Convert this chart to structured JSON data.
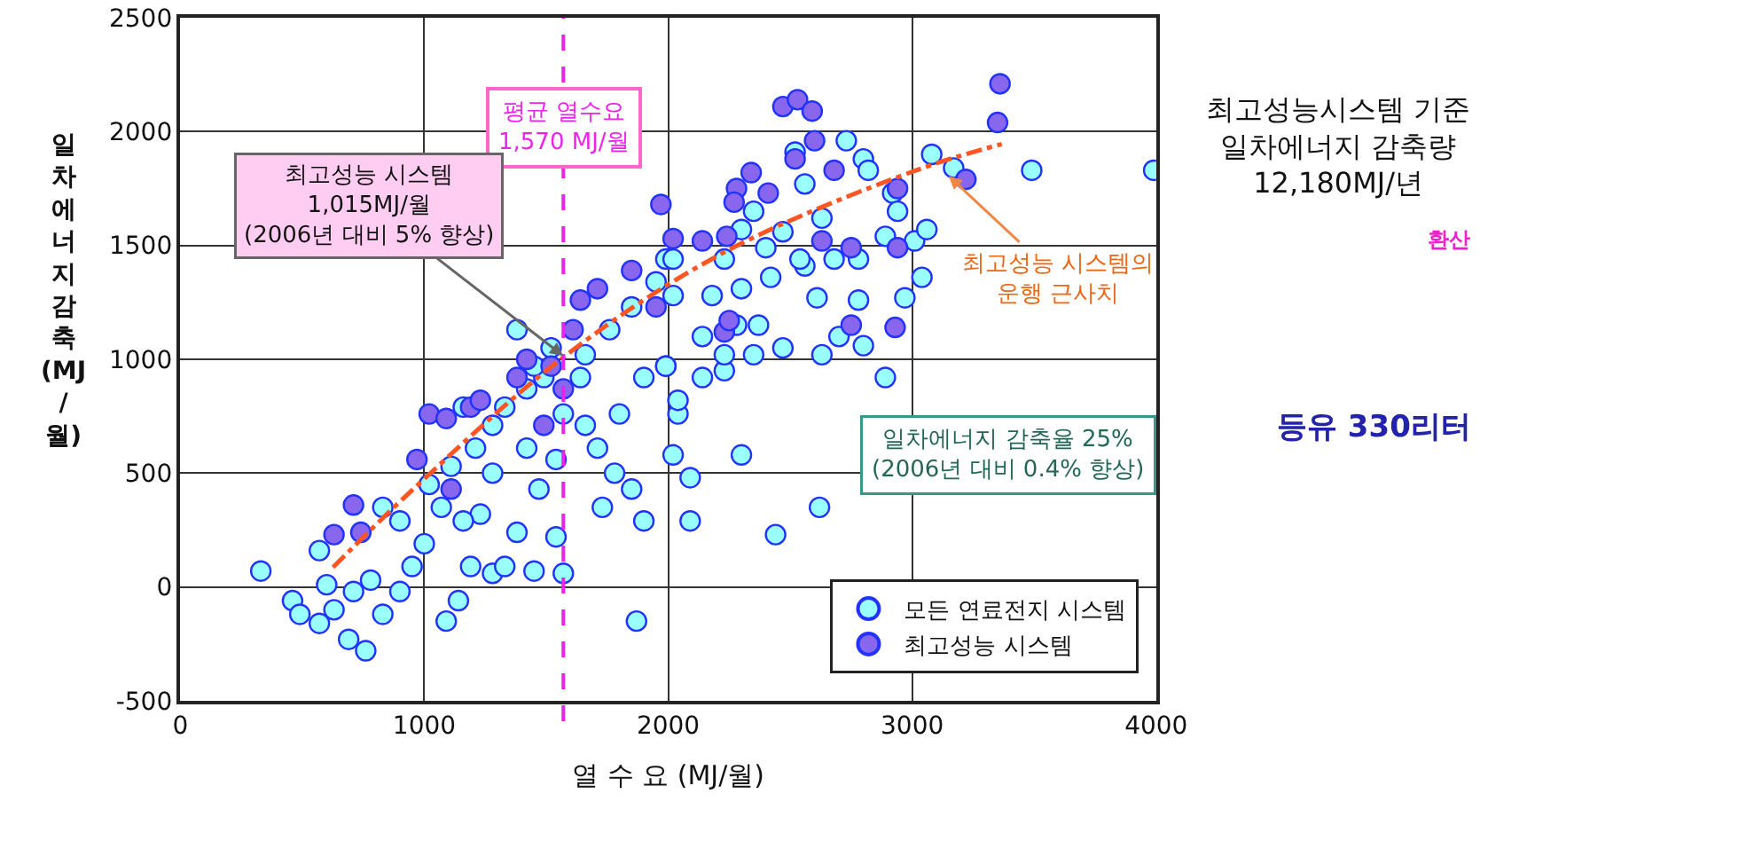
{
  "chart_data": [
    {
      "type": "scatter",
      "xlabel": "열 수 요 (MJ/월)",
      "ylabel": "일차에너지감축(MJ/월)",
      "xlim": [
        0,
        4000
      ],
      "ylim": [
        -500,
        2500
      ],
      "xticks": [
        0,
        1000,
        2000,
        3000,
        4000
      ],
      "yticks": [
        -500,
        0,
        500,
        1000,
        1500,
        2000,
        2500
      ],
      "grid": true,
      "legend": "bottom right",
      "marker": "circle",
      "series": [
        {
          "name": "모든 연료전지 시스템",
          "color": "#99ffff",
          "x": [
            330,
            460,
            490,
            570,
            630,
            690,
            760,
            600,
            570,
            710,
            780,
            830,
            900,
            950,
            1000,
            1090,
            1140,
            1190,
            1280,
            1330,
            1450,
            1570,
            1540,
            1380,
            1230,
            1160,
            1070,
            1020,
            1110,
            1210,
            1280,
            1330,
            1420,
            1490,
            1570,
            1660,
            1710,
            1780,
            1850,
            1900,
            1730,
            1800,
            1900,
            1990,
            2040,
            2020,
            1870,
            900,
            830,
            1280,
            1420,
            1540,
            1470,
            1640,
            1660,
            1760,
            1850,
            1950,
            1990,
            1450,
            1160,
            1380,
            1520,
            2020,
            2020,
            1990,
            2040,
            2090,
            2090,
            2300,
            2440,
            2620,
            2890,
            2140,
            2230,
            2350,
            2470,
            2630,
            2700,
            2800,
            2180,
            2300,
            2420,
            2560,
            2680,
            2780,
            2610,
            2780,
            2970,
            3040,
            3010,
            3060,
            2890,
            2920,
            2940,
            2800,
            2730,
            2820,
            2560,
            2520,
            2350,
            2470,
            2300,
            3080,
            3170,
            3490,
            3990,
            2630,
            2280,
            2370,
            2140,
            2230,
            2540,
            2400,
            2230
          ],
          "values": [
            70,
            -60,
            -120,
            -160,
            -100,
            -230,
            -280,
            10,
            160,
            -20,
            30,
            -120,
            -20,
            90,
            190,
            -150,
            -60,
            90,
            60,
            90,
            70,
            60,
            220,
            240,
            320,
            290,
            350,
            450,
            530,
            610,
            710,
            790,
            870,
            920,
            760,
            710,
            610,
            500,
            430,
            290,
            350,
            760,
            920,
            970,
            760,
            580,
            -150,
            290,
            350,
            500,
            610,
            560,
            430,
            920,
            1020,
            1130,
            1230,
            1340,
            1440,
            970,
            790,
            1130,
            1050,
            1440,
            1280,
            970,
            820,
            480,
            290,
            580,
            230,
            350,
            920,
            1100,
            950,
            1020,
            1050,
            1020,
            1100,
            1060,
            1280,
            1310,
            1360,
            1410,
            1440,
            1440,
            1270,
            1260,
            1270,
            1360,
            1520,
            1570,
            1540,
            1730,
            1650,
            1880,
            1960,
            1830,
            1770,
            1910,
            1650,
            1560,
            1570,
            1900,
            1840,
            1830,
            1830,
            1620,
            1150,
            1150,
            920,
            1020,
            1440,
            1490,
            1440
          ]
        },
        {
          "name": "최고성능 시스템",
          "color": "#8866ee",
          "x": [
            630,
            740,
            710,
            970,
            1020,
            1090,
            1190,
            1230,
            1110,
            1380,
            1420,
            1520,
            1610,
            1640,
            1710,
            1850,
            1950,
            1970,
            1570,
            1490,
            2470,
            2530,
            2590,
            2600,
            2520,
            2680,
            2410,
            2340,
            2280,
            2270,
            2240,
            2140,
            2020,
            2630,
            2750,
            2940,
            2940,
            2750,
            2230,
            2250,
            2930,
            3350,
            3360,
            3220
          ],
          "values": [
            230,
            240,
            360,
            560,
            760,
            740,
            790,
            820,
            430,
            920,
            1000,
            970,
            1130,
            1260,
            1310,
            1390,
            1230,
            1680,
            870,
            710,
            2110,
            2140,
            2090,
            1960,
            1880,
            1830,
            1730,
            1820,
            1750,
            1690,
            1540,
            1520,
            1530,
            1520,
            1490,
            1490,
            1750,
            1150,
            1120,
            1170,
            1140,
            2040,
            2210,
            1790
          ]
        },
        {
          "type": "line",
          "color": "#ff5522",
          "line_style": "dashed",
          "marker": "none",
          "x": [
            626,
            947,
            1587,
            2228,
            3011,
            3367
          ],
          "values": [
            86,
            422,
            1023,
            1469,
            1828,
            1945
          ]
        }
      ],
      "ref_lines": [
        {
          "axis": "x",
          "value": 1570,
          "label": "평균 열수요\n1,570 MJ/월",
          "color": "#ee22ee",
          "line_style": "dashed"
        }
      ],
      "annotations": [
        {
          "text": "최고성능 시스템\n1,015MJ/월\n(2006년 대비 5% 향상)",
          "x": 1570,
          "y": 1015
        },
        {
          "text": "최고성능 시스템의\n운행 근사치",
          "x": 3150,
          "y": 1805
        },
        "일차에너지 감축율 25%\n(2006년 대비 0.4% 향상)"
      ]
    },
    {
      "type": "other",
      "annotations": [
        "최고성능시스템 기준\n일차에너지 감축량\n12,180MJ/년",
        "환산",
        "등유 330리터"
      ]
    }
  ]
}
